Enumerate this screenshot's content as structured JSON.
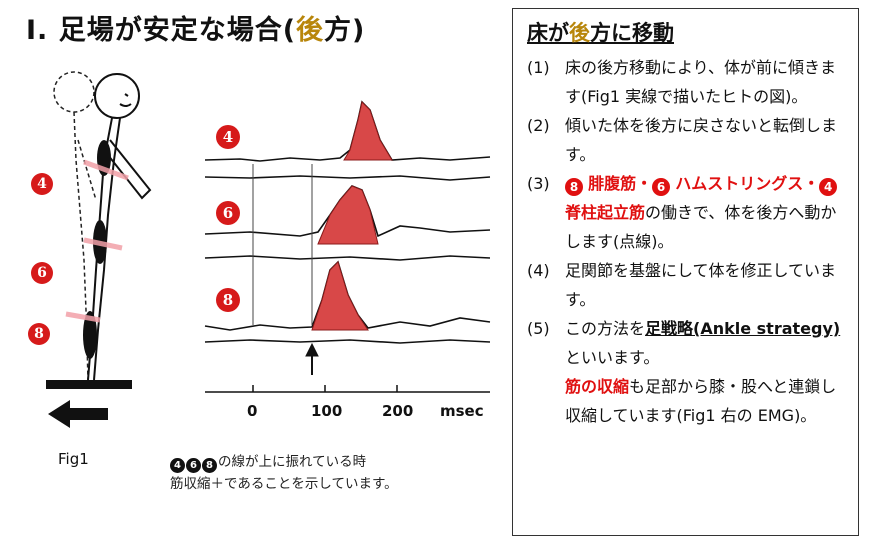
{
  "title": {
    "prefix": "Ⅰ. 足場が安定な場合(",
    "accent": "後",
    "suffix": "方)"
  },
  "figure": {
    "muscle_labels": [
      "4",
      "6",
      "8"
    ],
    "emg_labels": [
      "4",
      "6",
      "8"
    ],
    "time_ticks": [
      "0",
      "100",
      "200",
      "msec"
    ],
    "caption": "Fig1",
    "note_nums": [
      "4",
      "6",
      "8"
    ],
    "note_line1": "の線が上に振れている時",
    "note_line2": "筋収縮＋であることを示しています。"
  },
  "panel": {
    "title_prefix": "床が",
    "title_accent": "後",
    "title_suffix": "方に移動",
    "i1_num": "(1)",
    "i1_text": "床の後方移動により、体が前に傾きます(Fig1 実線で描いたヒトの図)。",
    "i2_num": "(2)",
    "i2_text": "傾いた体を後方に戻さないと転倒します。",
    "i3_num": "(3)",
    "i3_c1": "8",
    "i3_m1": "腓腹筋・",
    "i3_c2": "6",
    "i3_m2": "ハムストリングス・",
    "i3_c3": "4",
    "i3_m3": "脊柱起立筋",
    "i3_rest": "の働きで、体を後方へ動かします(点線)。",
    "i4_num": "(4)",
    "i4_text": "足関節を基盤にして体を修正しています。",
    "i5_num": "(5)",
    "i5_pre": "この方法を",
    "i5_ul": "足戦略(Ankle strategy)",
    "i5_post": "といいます。",
    "i5_red": "筋の収縮",
    "i5_rest": "も足部から膝・股へと連鎖し収縮しています(Fig1 右の EMG)。"
  }
}
